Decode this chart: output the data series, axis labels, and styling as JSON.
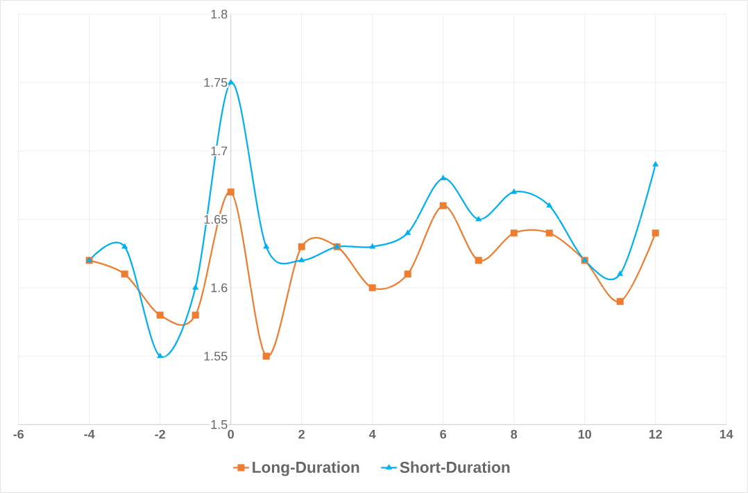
{
  "chart_data": {
    "type": "line",
    "x": [
      -4,
      -3,
      -2,
      -1,
      0,
      1,
      2,
      3,
      4,
      5,
      6,
      7,
      8,
      9,
      10,
      11,
      12
    ],
    "series": [
      {
        "name": "Long-Duration",
        "color": "#ed7d31",
        "marker": "square",
        "values": [
          1.62,
          1.61,
          1.58,
          1.58,
          1.67,
          1.55,
          1.63,
          1.63,
          1.6,
          1.61,
          1.66,
          1.62,
          1.64,
          1.64,
          1.62,
          1.59,
          1.64
        ]
      },
      {
        "name": "Short-Duration",
        "color": "#00b0f0",
        "marker": "triangle",
        "values": [
          1.62,
          1.63,
          1.55,
          1.6,
          1.75,
          1.63,
          1.62,
          1.63,
          1.63,
          1.64,
          1.68,
          1.65,
          1.67,
          1.66,
          1.62,
          1.61,
          1.69
        ]
      }
    ],
    "xlim": [
      -6,
      14
    ],
    "xticks": [
      -6,
      -4,
      -2,
      0,
      2,
      4,
      6,
      8,
      10,
      12,
      14
    ],
    "ylim": [
      1.5,
      1.8
    ],
    "yticks": [
      1.5,
      1.55,
      1.6,
      1.65,
      1.7,
      1.75,
      1.8
    ],
    "grid": true,
    "legend": "bottom",
    "line_style": "solid"
  }
}
